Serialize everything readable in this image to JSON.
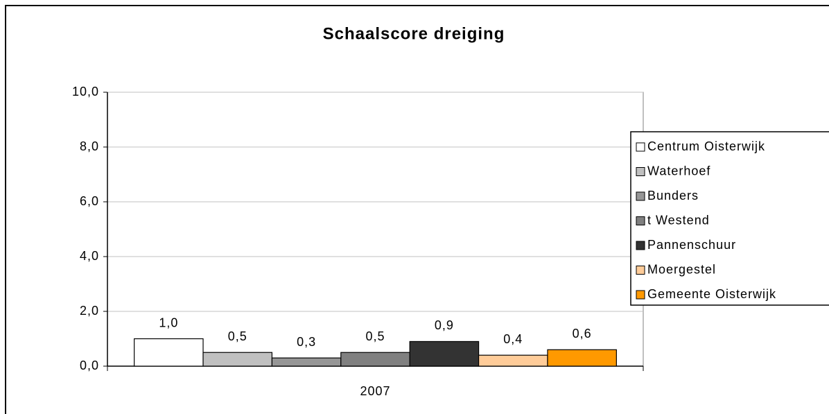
{
  "chart_data": {
    "type": "bar",
    "title": "Schaalscore dreiging",
    "categories": [
      "2007"
    ],
    "series": [
      {
        "name": "Centrum Oisterwijk",
        "color": "#ffffff",
        "values": [
          1.0
        ],
        "value_labels": [
          "1,0"
        ]
      },
      {
        "name": "Waterhoef",
        "color": "#c0c0c0",
        "values": [
          0.5
        ],
        "value_labels": [
          "0,5"
        ]
      },
      {
        "name": "Bunders",
        "color": "#969696",
        "values": [
          0.3
        ],
        "value_labels": [
          "0,3"
        ]
      },
      {
        "name": "t Westend",
        "color": "#808080",
        "values": [
          0.5
        ],
        "value_labels": [
          "0,5"
        ]
      },
      {
        "name": "Pannenschuur",
        "color": "#333333",
        "values": [
          0.9
        ],
        "value_labels": [
          "0,9"
        ]
      },
      {
        "name": "Moergestel",
        "color": "#ffcc99",
        "values": [
          0.4
        ],
        "value_labels": [
          "0,4"
        ]
      },
      {
        "name": "Gemeente Oisterwijk",
        "color": "#ff9900",
        "values": [
          0.6
        ],
        "value_labels": [
          "0,6"
        ]
      }
    ],
    "ylim": [
      0,
      10
    ],
    "yticks": [
      {
        "value": 0,
        "label": "0,0"
      },
      {
        "value": 2,
        "label": "2,0"
      },
      {
        "value": 4,
        "label": "4,0"
      },
      {
        "value": 6,
        "label": "6,0"
      },
      {
        "value": 8,
        "label": "8,0"
      },
      {
        "value": 10,
        "label": "10,0"
      }
    ],
    "grid": true,
    "legend": "right"
  }
}
